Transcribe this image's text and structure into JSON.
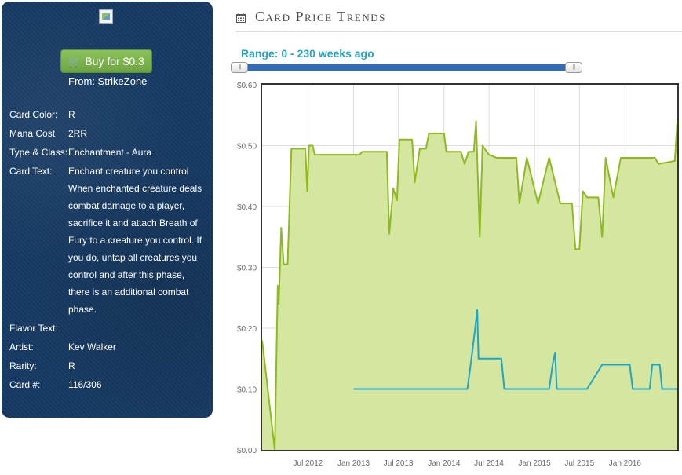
{
  "sidebar": {
    "buy_label": "Buy for $0.3",
    "from_label": "From: StrikeZone",
    "details": [
      {
        "label": "Card Color:",
        "value": "R"
      },
      {
        "label": "Mana Cost",
        "value": "2RR"
      },
      {
        "label": "Type & Class:",
        "value": "Enchantment - Aura"
      },
      {
        "label": "Card Text:",
        "value": "Enchant creature you control When enchanted creature deals combat damage to a player, sacrifice it and attach Breath of Fury to a creature you control. If you do, untap all creatures you control and after this phase, there is an additional combat phase."
      },
      {
        "label": "Flavor Text:",
        "value": ""
      },
      {
        "label": "Artist:",
        "value": "Kev Walker"
      },
      {
        "label": "Rarity:",
        "value": "R"
      },
      {
        "label": "Card #:",
        "value": "116/306"
      }
    ]
  },
  "header": {
    "title": "Card Price Trends",
    "range_label": "Range: 0 - 230 weeks ago"
  },
  "colors": {
    "panel": "#173a63",
    "green_line": "#8fba1f",
    "green_fill": "#d4e6a0",
    "blue_line": "#1ea6c7",
    "accent": "#27a3c7"
  },
  "chart_data": {
    "type": "area",
    "ylim": [
      0,
      0.6
    ],
    "yticks": [
      "$0.00",
      "$0.10",
      "$0.20",
      "$0.30",
      "$0.40",
      "$0.50",
      "$0.60"
    ],
    "xticks": [
      "Jul 2012",
      "Jan 2013",
      "Jul 2013",
      "Jan 2014",
      "Jul 2014",
      "Jan 2015",
      "Jul 2015",
      "Jan 2016"
    ],
    "grid": true,
    "series": [
      {
        "color": "#8fba1f",
        "fill": true,
        "points": [
          [
            "2011-12-29",
            0.18
          ],
          [
            "2012-02-18",
            0.0
          ],
          [
            "2012-03-01",
            0.27
          ],
          [
            "2012-03-05",
            0.24
          ],
          [
            "2012-03-15",
            0.365
          ],
          [
            "2012-03-25",
            0.305
          ],
          [
            "2012-04-10",
            0.305
          ],
          [
            "2012-04-25",
            0.495
          ],
          [
            "2012-06-20",
            0.495
          ],
          [
            "2012-06-28",
            0.425
          ],
          [
            "2012-07-05",
            0.5
          ],
          [
            "2012-07-20",
            0.5
          ],
          [
            "2012-07-28",
            0.485
          ],
          [
            "2012-12-01",
            0.485
          ],
          [
            "2013-01-25",
            0.485
          ],
          [
            "2013-02-05",
            0.49
          ],
          [
            "2013-05-15",
            0.49
          ],
          [
            "2013-05-25",
            0.355
          ],
          [
            "2013-06-10",
            0.43
          ],
          [
            "2013-06-25",
            0.41
          ],
          [
            "2013-07-05",
            0.51
          ],
          [
            "2013-08-25",
            0.51
          ],
          [
            "2013-09-05",
            0.44
          ],
          [
            "2013-09-25",
            0.495
          ],
          [
            "2013-10-20",
            0.495
          ],
          [
            "2013-11-01",
            0.52
          ],
          [
            "2014-01-01",
            0.52
          ],
          [
            "2014-01-10",
            0.49
          ],
          [
            "2014-03-10",
            0.49
          ],
          [
            "2014-03-25",
            0.47
          ],
          [
            "2014-04-10",
            0.49
          ],
          [
            "2014-05-01",
            0.49
          ],
          [
            "2014-05-10",
            0.54
          ],
          [
            "2014-05-25",
            0.35
          ],
          [
            "2014-06-05",
            0.5
          ],
          [
            "2014-07-01",
            0.485
          ],
          [
            "2014-08-01",
            0.48
          ],
          [
            "2014-10-20",
            0.48
          ],
          [
            "2014-11-01",
            0.405
          ],
          [
            "2014-12-01",
            0.48
          ],
          [
            "2015-01-15",
            0.405
          ],
          [
            "2015-03-01",
            0.48
          ],
          [
            "2015-04-15",
            0.405
          ],
          [
            "2015-06-01",
            0.405
          ],
          [
            "2015-06-15",
            0.33
          ],
          [
            "2015-07-01",
            0.33
          ],
          [
            "2015-07-15",
            0.425
          ],
          [
            "2015-08-01",
            0.415
          ],
          [
            "2015-09-15",
            0.415
          ],
          [
            "2015-10-01",
            0.35
          ],
          [
            "2015-10-15",
            0.48
          ],
          [
            "2015-11-15",
            0.415
          ],
          [
            "2015-12-15",
            0.48
          ],
          [
            "2016-05-01",
            0.48
          ],
          [
            "2016-05-15",
            0.47
          ],
          [
            "2016-07-20",
            0.475
          ],
          [
            "2016-07-30",
            0.54
          ]
        ]
      },
      {
        "color": "#1ea6c7",
        "fill": false,
        "points": [
          [
            "2013-01-01",
            0.1
          ],
          [
            "2014-04-05",
            0.1
          ],
          [
            "2014-04-20",
            0.145
          ],
          [
            "2014-05-05",
            0.195
          ],
          [
            "2014-05-15",
            0.23
          ],
          [
            "2014-05-20",
            0.15
          ],
          [
            "2014-08-20",
            0.15
          ],
          [
            "2014-09-01",
            0.1
          ],
          [
            "2015-03-01",
            0.1
          ],
          [
            "2015-03-15",
            0.14
          ],
          [
            "2015-03-25",
            0.16
          ],
          [
            "2015-04-01",
            0.1
          ],
          [
            "2015-08-01",
            0.1
          ],
          [
            "2015-10-01",
            0.14
          ],
          [
            "2016-01-20",
            0.14
          ],
          [
            "2016-02-01",
            0.1
          ],
          [
            "2016-04-10",
            0.1
          ],
          [
            "2016-04-20",
            0.14
          ],
          [
            "2016-05-20",
            0.14
          ],
          [
            "2016-05-30",
            0.1
          ],
          [
            "2016-07-30",
            0.1
          ]
        ]
      }
    ]
  }
}
